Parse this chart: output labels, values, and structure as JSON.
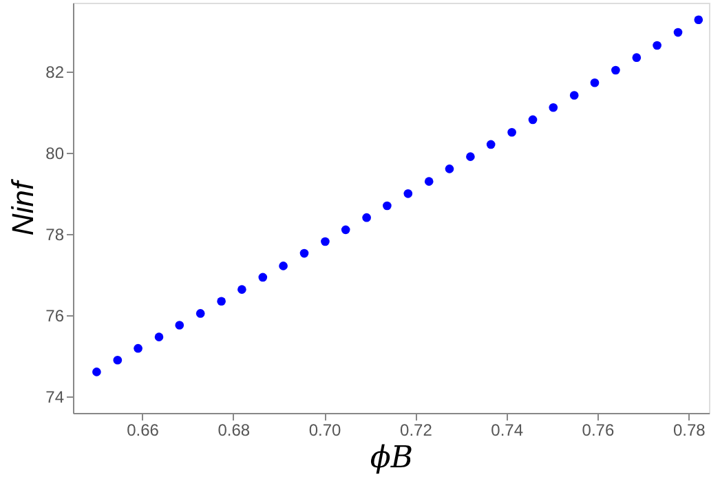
{
  "chart_data": {
    "type": "scatter",
    "xlabel": "ϕB",
    "ylabel": "Ninf",
    "x": [
      0.65,
      0.6546,
      0.6591,
      0.6637,
      0.6682,
      0.6728,
      0.6774,
      0.6819,
      0.6865,
      0.691,
      0.6956,
      0.7002,
      0.7047,
      0.7093,
      0.7138,
      0.7184,
      0.723,
      0.7275,
      0.7321,
      0.7366,
      0.7412,
      0.7458,
      0.7503,
      0.7549,
      0.7594,
      0.764,
      0.7686,
      0.7731,
      0.7777,
      0.7822
    ],
    "series": [
      {
        "color": "#0000ff",
        "values": [
          74.61,
          74.9,
          75.19,
          75.47,
          75.76,
          76.05,
          76.35,
          76.64,
          76.94,
          77.22,
          77.53,
          77.82,
          78.11,
          78.41,
          78.7,
          79.0,
          79.3,
          79.61,
          79.91,
          80.21,
          80.51,
          80.82,
          81.12,
          81.42,
          81.73,
          82.04,
          82.35,
          82.65,
          82.97,
          83.28
        ]
      }
    ],
    "xlim": [
      0.6448,
      0.7845
    ],
    "ylim": [
      73.6,
      83.7
    ],
    "xticks": [
      0.66,
      0.68,
      {
        "value": 0.7,
        "label": "0.70"
      },
      0.72,
      0.74,
      0.76,
      0.78
    ],
    "yticks": [
      74,
      76,
      78,
      80,
      82
    ],
    "grid": false,
    "marker": "circle"
  }
}
